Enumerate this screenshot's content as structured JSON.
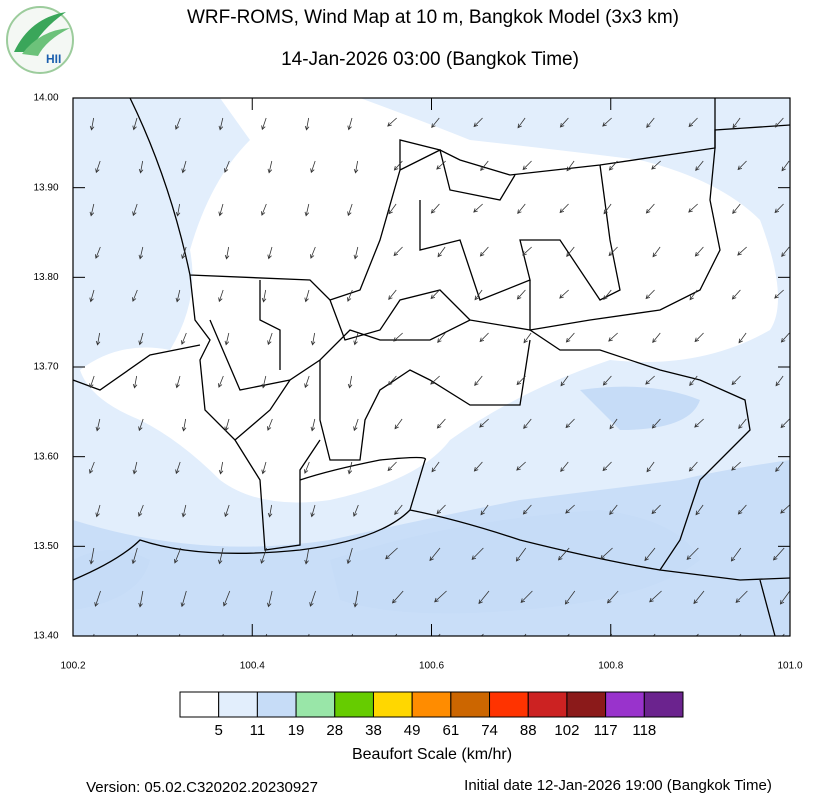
{
  "header": {
    "logo": "HII",
    "title": "WRF-ROMS, Wind Map at 10 m, Bangkok Model (3x3 km)",
    "subtitle": "14-Jan-2026 03:00 (Bangkok Time)"
  },
  "map": {
    "xlim": [
      100.2,
      101.0
    ],
    "ylim": [
      13.4,
      14.0
    ],
    "xticks": [
      100.2,
      100.4,
      100.6,
      100.8,
      {
        "value": 101.0,
        "label": "101.0"
      }
    ],
    "yticks": [
      {
        "value": 13.4,
        "label": "13.40"
      },
      {
        "value": 13.5,
        "label": "13.50"
      },
      {
        "value": 13.6,
        "label": "13.60"
      },
      {
        "value": 13.7,
        "label": "13.70"
      },
      {
        "value": 13.8,
        "label": "13.80"
      },
      {
        "value": 13.9,
        "label": "13.90"
      },
      {
        "value": 14.0,
        "label": "14.00"
      }
    ]
  },
  "legend": {
    "title": "Beaufort Scale (km/hr)",
    "colors": [
      "#ffffff",
      "#e2eefc",
      "#c6dcf7",
      "#99e6a8",
      "#66cc00",
      "#ffd700",
      "#ff8c00",
      "#cc6600",
      "#ff3300",
      "#cc2222",
      "#8b1a1a",
      "#9933cc",
      "#6b238e"
    ],
    "labels": [
      5,
      11,
      19,
      28,
      38,
      49,
      61,
      74,
      88,
      102,
      117,
      118
    ]
  },
  "footer": {
    "version": "Version: 05.02.C320202.20230927",
    "initial": "Initial date 12-Jan-2026 19:00 (Bangkok Time)"
  }
}
